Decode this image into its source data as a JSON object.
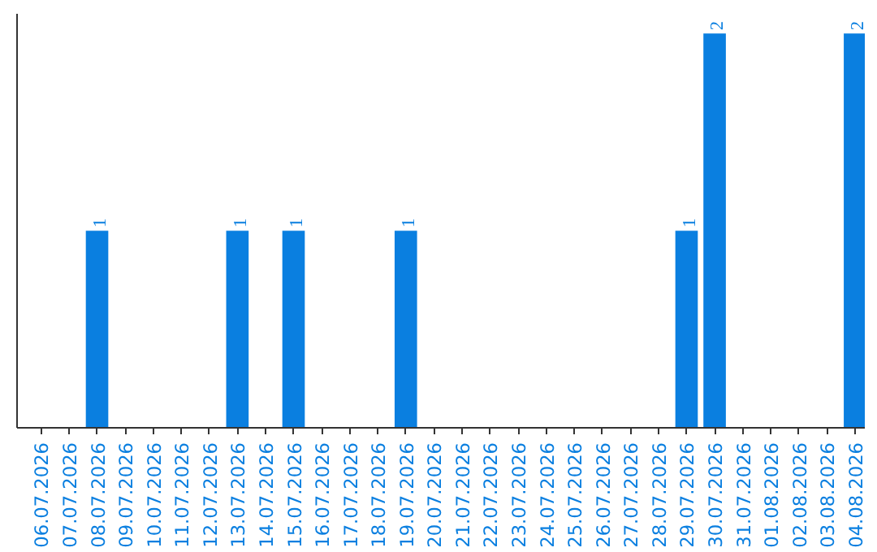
{
  "chart_data": {
    "type": "bar",
    "categories": [
      "06.07.2026",
      "07.07.2026",
      "08.07.2026",
      "09.07.2026",
      "10.07.2026",
      "11.07.2026",
      "12.07.2026",
      "13.07.2026",
      "14.07.2026",
      "15.07.2026",
      "16.07.2026",
      "17.07.2026",
      "18.07.2026",
      "19.07.2026",
      "20.07.2026",
      "21.07.2026",
      "22.07.2026",
      "23.07.2026",
      "24.07.2026",
      "25.07.2026",
      "26.07.2026",
      "27.07.2026",
      "28.07.2026",
      "29.07.2026",
      "30.07.2026",
      "31.07.2026",
      "01.08.2026",
      "02.08.2026",
      "03.08.2026",
      "04.08.2026"
    ],
    "values": [
      0,
      0,
      1,
      0,
      0,
      0,
      0,
      1,
      0,
      1,
      0,
      0,
      0,
      1,
      0,
      0,
      0,
      0,
      0,
      0,
      0,
      0,
      0,
      1,
      2,
      0,
      0,
      0,
      0,
      2
    ],
    "value_labels": [
      null,
      null,
      "1",
      null,
      null,
      null,
      null,
      "1",
      null,
      "1",
      null,
      null,
      null,
      "1",
      null,
      null,
      null,
      null,
      null,
      null,
      null,
      null,
      null,
      "1",
      "2",
      null,
      null,
      null,
      null,
      "2"
    ],
    "color": "#0a7fe0",
    "grid": false
  }
}
